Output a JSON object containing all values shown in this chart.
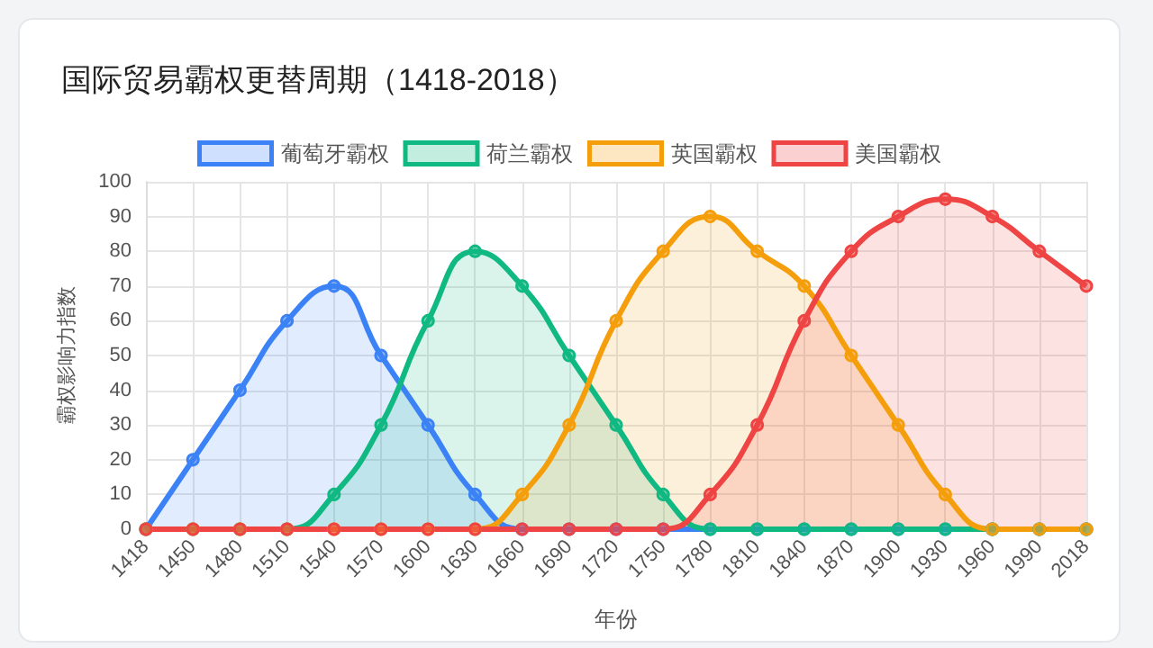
{
  "chart_data": {
    "type": "area",
    "title": "国际贸易霸权更替周期（1418-2018）",
    "xlabel": "年份",
    "ylabel": "霸权影响力指数",
    "categories": [
      "1418",
      "1450",
      "1480",
      "1510",
      "1540",
      "1570",
      "1600",
      "1630",
      "1660",
      "1690",
      "1720",
      "1750",
      "1780",
      "1810",
      "1840",
      "1870",
      "1900",
      "1930",
      "1960",
      "1990",
      "2018"
    ],
    "series": [
      {
        "name": "葡萄牙霸权",
        "color": "#3b82f6",
        "values": [
          0,
          20,
          40,
          60,
          70,
          50,
          30,
          10,
          0,
          0,
          0,
          0,
          0,
          0,
          0,
          0,
          0,
          0,
          0,
          0,
          0
        ]
      },
      {
        "name": "荷兰霸权",
        "color": "#10b981",
        "values": [
          0,
          0,
          0,
          0,
          10,
          30,
          60,
          80,
          70,
          50,
          30,
          10,
          0,
          0,
          0,
          0,
          0,
          0,
          0,
          0,
          0
        ]
      },
      {
        "name": "英国霸权",
        "color": "#f59e0b",
        "values": [
          0,
          0,
          0,
          0,
          0,
          0,
          0,
          0,
          10,
          30,
          60,
          80,
          90,
          80,
          70,
          50,
          30,
          10,
          0,
          0,
          0
        ]
      },
      {
        "name": "美国霸权",
        "color": "#ef4444",
        "values": [
          0,
          0,
          0,
          0,
          0,
          0,
          0,
          0,
          0,
          0,
          0,
          0,
          10,
          30,
          60,
          80,
          90,
          95,
          90,
          80,
          70
        ]
      }
    ],
    "ylim": [
      0,
      100
    ],
    "yticks": [
      0,
      10,
      20,
      30,
      40,
      50,
      60,
      70,
      80,
      90,
      100
    ],
    "grid": true,
    "legend": "top",
    "marker": "circle"
  }
}
